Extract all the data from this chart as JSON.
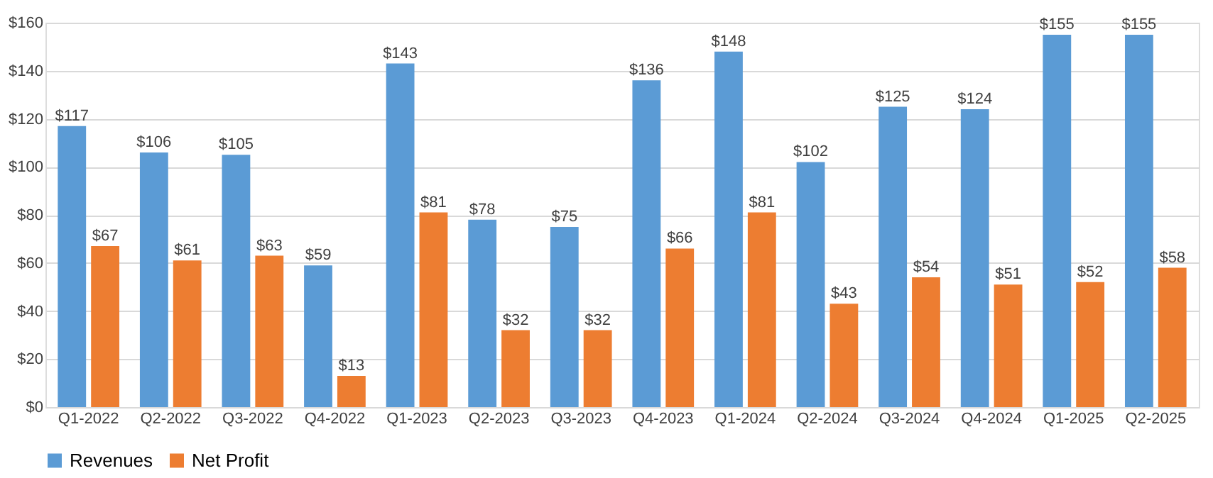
{
  "chart_data": {
    "type": "bar",
    "categories": [
      "Q1-2022",
      "Q2-2022",
      "Q3-2022",
      "Q4-2022",
      "Q1-2023",
      "Q2-2023",
      "Q3-2023",
      "Q4-2023",
      "Q1-2024",
      "Q2-2024",
      "Q3-2024",
      "Q4-2024",
      "Q1-2025",
      "Q2-2025"
    ],
    "series": [
      {
        "name": "Revenues",
        "color": "#5b9bd5",
        "values": [
          117,
          106,
          105,
          59,
          143,
          78,
          75,
          136,
          148,
          102,
          125,
          124,
          155,
          155
        ],
        "value_labels": [
          "$117",
          "$106",
          "$105",
          "$59",
          "$143",
          "$78",
          "$75",
          "$136",
          "$148",
          "$102",
          "$125",
          "$124",
          "$155",
          "$155"
        ]
      },
      {
        "name": "Net Profit",
        "color": "#ed7d31",
        "values": [
          67,
          61,
          63,
          13,
          81,
          32,
          32,
          66,
          81,
          43,
          54,
          51,
          52,
          58
        ],
        "value_labels": [
          "$67",
          "$61",
          "$63",
          "$13",
          "$81",
          "$32",
          "$32",
          "$66",
          "$81",
          "$43",
          "$54",
          "$51",
          "$52",
          "$58"
        ]
      }
    ],
    "ylim": [
      0,
      160
    ],
    "yticks": [
      {
        "value": 0,
        "label": "$0"
      },
      {
        "value": 20,
        "label": "$20"
      },
      {
        "value": 40,
        "label": "$40"
      },
      {
        "value": 60,
        "label": "$60"
      },
      {
        "value": 80,
        "label": "$80"
      },
      {
        "value": 100,
        "label": "$100"
      },
      {
        "value": 120,
        "label": "$120"
      },
      {
        "value": 140,
        "label": "$140"
      },
      {
        "value": 160,
        "label": "$160"
      }
    ],
    "grid": "y",
    "legend": "bottom"
  }
}
